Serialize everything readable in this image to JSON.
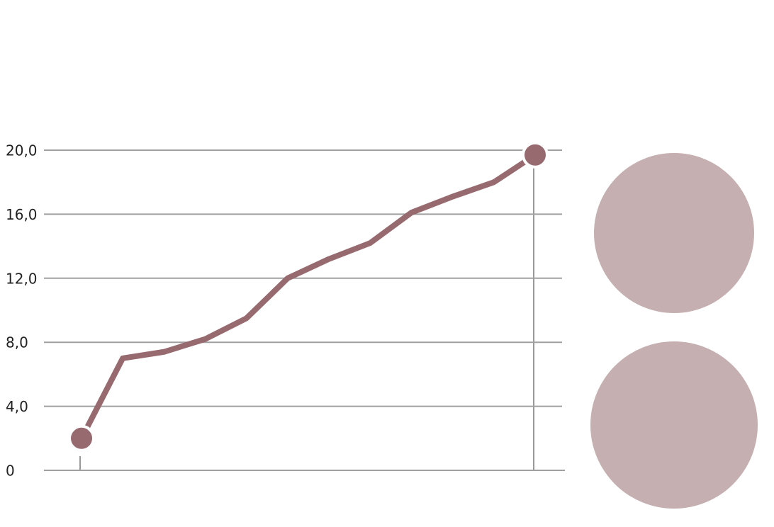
{
  "chart_data": {
    "type": "line",
    "categories": [
      null,
      null,
      null,
      null,
      null,
      null,
      null,
      null,
      null,
      null,
      null,
      null
    ],
    "series": [
      {
        "color": "#976a6f",
        "values": [
          2.0,
          7.0,
          7.4,
          8.2,
          9.5,
          12.0,
          13.2,
          14.2,
          16.1,
          17.1,
          18.0,
          19.7
        ]
      }
    ],
    "ylim": [
      0,
      20
    ],
    "yticks": [
      0,
      {
        "value": 4,
        "label": "4,0"
      },
      {
        "value": 8,
        "label": "8,0"
      },
      {
        "value": 12,
        "label": "12,0"
      },
      {
        "value": 16,
        "label": "16,0"
      },
      {
        "value": 20,
        "label": "20,0"
      }
    ],
    "grid": true
  }
}
